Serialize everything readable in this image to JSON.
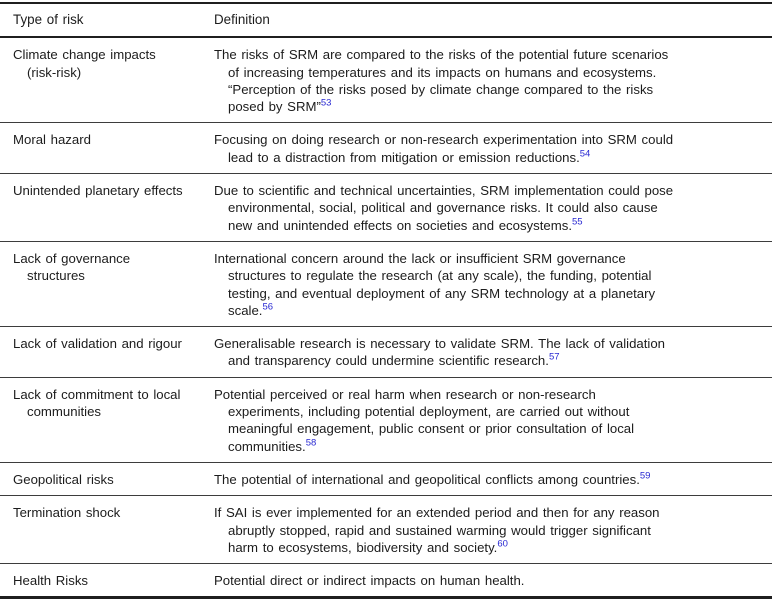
{
  "document": {
    "header": {
      "col_type": "Type of risk",
      "col_def": "Definition"
    },
    "ref_color": "#2828d2",
    "text_color": "#1c1c1c",
    "rows": [
      {
        "type_lines": [
          "Climate change impacts",
          "(risk-risk)"
        ],
        "def_lines": [
          "The risks of SRM are compared to the risks of the potential future scenarios",
          "of increasing temperatures and its impacts on humans and ecosystems.",
          "“Perception of the risks posed by climate change compared to the risks",
          "posed by SRM”"
        ],
        "ref": "53"
      },
      {
        "type_lines": [
          "Moral hazard"
        ],
        "def_lines": [
          "Focusing on doing research or non-research experimentation into SRM could",
          "lead to a distraction from mitigation or emission reductions."
        ],
        "ref": "54"
      },
      {
        "type_lines": [
          "Unintended planetary effects"
        ],
        "def_lines": [
          "Due to scientific and technical uncertainties, SRM implementation could pose",
          "environmental, social, political and governance risks. It could also cause",
          "new and unintended effects on societies and ecosystems."
        ],
        "ref": "55"
      },
      {
        "type_lines": [
          "Lack of governance",
          "structures"
        ],
        "def_lines": [
          "International concern around the lack or insufficient SRM governance",
          "structures to regulate the research (at any scale), the funding, potential",
          "testing, and eventual deployment of any SRM technology at a planetary",
          "scale."
        ],
        "ref": "56"
      },
      {
        "type_lines": [
          "Lack of validation and rigour"
        ],
        "def_lines": [
          "Generalisable research is necessary to validate SRM. The lack of validation",
          "and transparency could undermine scientific research."
        ],
        "ref": "57"
      },
      {
        "type_lines": [
          "Lack of commitment to local",
          "communities"
        ],
        "def_lines": [
          "Potential perceived or real harm when research or non-research",
          "experiments, including potential deployment, are carried out without",
          "meaningful engagement, public consent or prior consultation of local",
          "communities."
        ],
        "ref": "58"
      },
      {
        "type_lines": [
          "Geopolitical risks"
        ],
        "def_lines": [
          "The potential of international and geopolitical conflicts among countries."
        ],
        "ref": "59"
      },
      {
        "type_lines": [
          "Termination shock"
        ],
        "def_lines": [
          "If SAI is ever implemented for an extended period and then for any reason",
          "abruptly stopped, rapid and sustained warming would trigger significant",
          "harm to ecosystems, biodiversity and society."
        ],
        "ref": "60"
      },
      {
        "type_lines": [
          "Health Risks"
        ],
        "def_lines": [
          "Potential direct or indirect impacts on human health."
        ],
        "ref": null
      }
    ]
  }
}
